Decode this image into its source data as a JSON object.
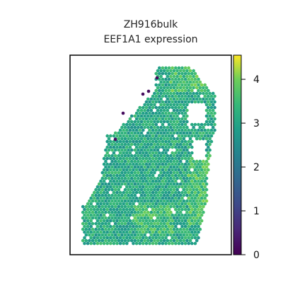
{
  "chart_data": {
    "type": "scatter",
    "title_line1": "ZH916bulk",
    "title_line2": "EEF1A1 expression",
    "xlabel": "",
    "ylabel": "",
    "colorbar": {
      "colormap": "viridis",
      "range": [
        0,
        4.55
      ],
      "ticks": [
        0,
        1,
        2,
        3,
        4
      ],
      "tick_labels": [
        "0",
        "1",
        "2",
        "3",
        "4"
      ]
    },
    "points_description": "spatial spots colored by expression; values mostly 2.6–4.2, a few outliers near 0",
    "colors": {
      "frame": "#000000",
      "low": "#440154",
      "mid": "#21918c",
      "high": "#fde725"
    }
  }
}
